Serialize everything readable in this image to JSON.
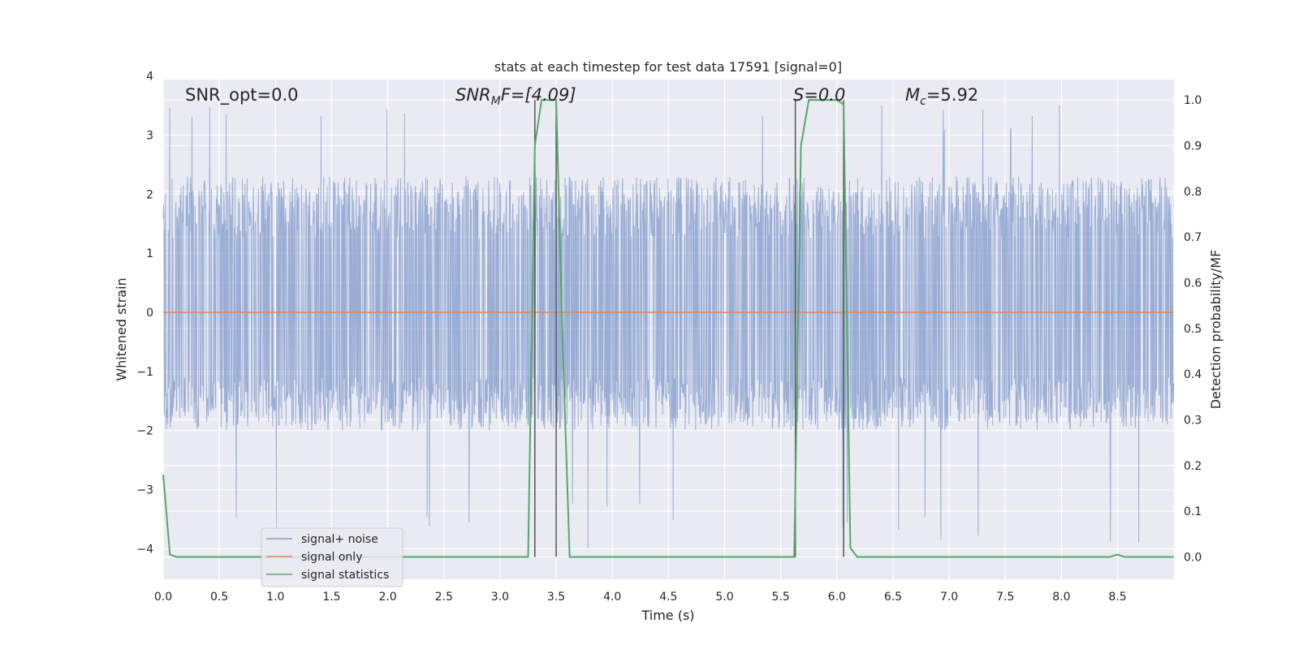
{
  "chart_data": {
    "type": "line",
    "title": "stats at each timestep for test data 17591 [signal=0]",
    "xlabel": "Time (s)",
    "ylabel": "Whitened strain",
    "y2label": "Detection probability/MF",
    "xlim": [
      0.0,
      9.0
    ],
    "ylim": [
      -4.4,
      4.0
    ],
    "y2lim": [
      -0.048,
      1.048
    ],
    "xticks": [
      "0.0",
      "0.5",
      "1.0",
      "1.5",
      "2.0",
      "2.5",
      "3.0",
      "3.5",
      "4.0",
      "4.5",
      "5.0",
      "5.5",
      "6.0",
      "6.5",
      "7.0",
      "7.5",
      "8.0",
      "8.5"
    ],
    "yticks": [
      "4",
      "3",
      "2",
      "1",
      "0",
      "−1",
      "−2",
      "−3",
      "−4"
    ],
    "y2ticks": [
      "1.0",
      "0.9",
      "0.8",
      "0.7",
      "0.6",
      "0.5",
      "0.4",
      "0.3",
      "0.2",
      "0.1",
      "0.0"
    ],
    "grid": true,
    "legend_position": "lower-left",
    "annotations": {
      "snr_opt": "SNR_opt=0.0",
      "snr_mf_prefix": "SNR",
      "snr_mf_sub": "M",
      "snr_mf_suffix": "F=[4.09]",
      "s_label": "S=0.0",
      "mc_prefix": "M",
      "mc_sub": "c",
      "mc_suffix": "=5.92"
    },
    "series": [
      {
        "name": "signal+ noise",
        "color": "#7f9acb",
        "description_axis": "left",
        "noise_envelope": {
          "typical_max": 2.3,
          "typical_min": -2.0,
          "peak_max": 3.6,
          "peak_min": -4.0
        }
      },
      {
        "name": "signal only",
        "color": "#dd8452",
        "description_axis": "left",
        "x": [
          0.0,
          9.0
        ],
        "y": [
          0.0,
          0.0
        ]
      },
      {
        "name": "signal statistics",
        "color": "#55a868",
        "description_axis": "right",
        "x": [
          0.0,
          0.06,
          0.12,
          3.25,
          3.31,
          3.37,
          3.44,
          3.5,
          3.56,
          3.62,
          5.62,
          5.68,
          5.75,
          5.81,
          5.87,
          5.93,
          6.0,
          6.06,
          6.12,
          6.18,
          8.43,
          8.5,
          8.56,
          9.0
        ],
        "y": [
          0.18,
          0.005,
          0.0,
          0.0,
          0.9,
          1.0,
          1.0,
          1.0,
          0.45,
          0.0,
          0.0,
          0.9,
          1.0,
          1.0,
          1.0,
          1.0,
          1.0,
          0.99,
          0.02,
          0.0,
          0.0,
          0.005,
          0.0,
          0.0
        ]
      }
    ],
    "vertical_markers": [
      3.31,
      3.5,
      5.63,
      6.06
    ]
  }
}
